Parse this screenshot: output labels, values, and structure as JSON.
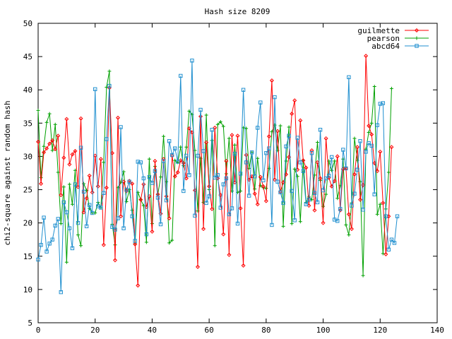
{
  "chart_data": {
    "type": "line",
    "title": "Hash size 8209",
    "xlabel": "",
    "ylabel": "chi2-square against random hash",
    "xlim": [
      0,
      140
    ],
    "ylim": [
      5,
      50
    ],
    "x_ticks": [
      0,
      20,
      40,
      60,
      80,
      100,
      120,
      140
    ],
    "y_ticks": [
      5,
      10,
      15,
      20,
      25,
      30,
      35,
      40,
      45,
      50
    ],
    "grid": false,
    "legend_position": "top-right",
    "x_start": 0,
    "x_step": 1,
    "series": [
      {
        "name": "guilmette",
        "color": "#ff0000",
        "marker": "diamond",
        "values": [
          32.2,
          25.9,
          30.6,
          31.2,
          31.9,
          32.4,
          31.1,
          33.1,
          24.2,
          29.8,
          35.6,
          28.8,
          30.3,
          30.8,
          25.4,
          35.7,
          21.6,
          23.7,
          27.1,
          24.6,
          30.1,
          25.5,
          29.6,
          16.7,
          25.3,
          40.3,
          30.5,
          14.4,
          35.8,
          21.0,
          26.2,
          24.8,
          26.3,
          25.9,
          16.8,
          10.6,
          23.5,
          25.8,
          22.4,
          24.0,
          18.7,
          29.3,
          24.3,
          21.4,
          29.6,
          24.0,
          20.7,
          30.1,
          27.0,
          27.6,
          29.4,
          29.0,
          26.7,
          34.2,
          33.6,
          24.9,
          13.4,
          36.0,
          19.1,
          32.1,
          25.5,
          22.1,
          34.3,
          26.7,
          24.2,
          18.3,
          29.3,
          15.2,
          33.2,
          26.1,
          33.1,
          22.2,
          13.6,
          30.2,
          26.5,
          27.0,
          24.4,
          22.8,
          26.9,
          25.5,
          23.3,
          33.0,
          41.4,
          26.5,
          33.8,
          24.7,
          26.1,
          27.3,
          29.9,
          36.4,
          38.4,
          28.0,
          35.4,
          29.4,
          28.3,
          22.6,
          30.9,
          21.9,
          29.1,
          26.7,
          20.0,
          32.7,
          26.8,
          25.5,
          26.3,
          30.0,
          21.9,
          28.1,
          28.2,
          21.3,
          19.1,
          27.3,
          31.4,
          23.5,
          25.7,
          45.1,
          34.6,
          33.3,
          29.0,
          27.8,
          30.7,
          23.0,
          15.3,
          21.0,
          31.4
        ]
      },
      {
        "name": "pearson",
        "color": "#00a000",
        "marker": "plus",
        "values": [
          36.9,
          26.8,
          31.5,
          35.1,
          36.4,
          30.9,
          34.8,
          27.6,
          19.9,
          25.4,
          14.1,
          25.8,
          22.8,
          27.9,
          18.2,
          16.6,
          25.9,
          24.9,
          22.2,
          21.5,
          21.5,
          23.1,
          22.3,
          29.1,
          40.4,
          42.8,
          19.8,
          16.7,
          25.3,
          26.1,
          27.7,
          23.2,
          25.0,
          21.9,
          16.9,
          24.6,
          23.5,
          22.6,
          17.1,
          29.6,
          19.9,
          28.5,
          24.3,
          26.9,
          33.0,
          26.2,
          17.0,
          17.4,
          29.4,
          29.1,
          31.4,
          28.6,
          31.4,
          36.8,
          36.3,
          30.9,
          21.8,
          29.7,
          23.1,
          36.2,
          25.0,
          32.4,
          16.6,
          34.8,
          35.2,
          34.5,
          27.4,
          32.7,
          24.8,
          31.7,
          24.6,
          24.8,
          34.3,
          34.2,
          28.2,
          30.6,
          25.1,
          29.7,
          25.6,
          25.3,
          25.2,
          28.2,
          33.7,
          34.7,
          30.9,
          34.6,
          19.5,
          29.3,
          34.4,
          19.9,
          28.1,
          27.0,
          20.2,
          29.4,
          23.1,
          23.9,
          23.5,
          27.2,
          32.1,
          26.4,
          22.5,
          24.3,
          29.3,
          27.9,
          29.3,
          23.7,
          25.6,
          29.6,
          19.7,
          18.2,
          23.0,
          32.7,
          29.4,
          26.2,
          12.1,
          31.1,
          33.6,
          35.0,
          40.5,
          21.3,
          22.8,
          15.4,
          22.1,
          27.6,
          40.2
        ]
      },
      {
        "name": "abcd64",
        "color": "#1f8fcf",
        "marker": "square",
        "values": [
          14.5,
          16.7,
          20.8,
          15.7,
          16.9,
          17.5,
          19.6,
          20.6,
          9.6,
          23.1,
          21.6,
          19.2,
          16.2,
          25.8,
          20.0,
          31.3,
          24.7,
          19.5,
          22.7,
          21.5,
          40.1,
          22.5,
          22.3,
          24.5,
          32.6,
          40.6,
          19.4,
          19.0,
          20.7,
          34.4,
          19.2,
          25.0,
          26.2,
          21.0,
          17.3,
          29.2,
          29.1,
          26.7,
          18.3,
          26.9,
          26.0,
          27.8,
          23.8,
          19.8,
          29.3,
          23.4,
          32.3,
          30.2,
          31.2,
          29.2,
          42.1,
          24.8,
          30.1,
          27.2,
          44.4,
          21.1,
          30.1,
          37.0,
          30.8,
          23.0,
          24.0,
          34.0,
          26.8,
          27.2,
          22.3,
          25.8,
          26.7,
          21.3,
          22.2,
          30.4,
          19.9,
          27.4,
          40.0,
          29.1,
          24.1,
          30.6,
          27.0,
          34.3,
          38.1,
          26.4,
          30.5,
          31.2,
          19.7,
          38.9,
          26.2,
          24.6,
          23.0,
          31.5,
          33.1,
          24.8,
          20.4,
          32.8,
          29.1,
          27.8,
          22.8,
          23.5,
          30.5,
          24.5,
          23.1,
          34.0,
          24.9,
          26.7,
          27.1,
          29.9,
          20.5,
          20.3,
          22.1,
          31.0,
          28.2,
          41.9,
          22.6,
          24.4,
          28.0,
          32.3,
          22.0,
          30.7,
          32.0,
          31.6,
          24.3,
          34.7,
          37.9,
          38.0,
          21.0,
          16.0,
          17.5,
          17.0,
          21.0
        ]
      }
    ]
  }
}
